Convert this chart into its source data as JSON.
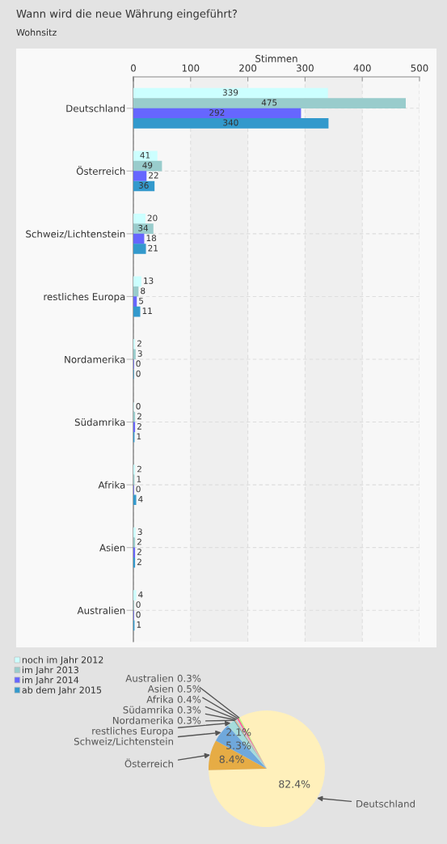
{
  "chart_data": [
    {
      "type": "bar",
      "orientation": "horizontal",
      "title": "Wann wird die neue Währung eingeführt?",
      "subtitle": "Wohnsitz",
      "xlabel": "Stimmen",
      "categories": [
        "Deutschland",
        "Österreich",
        "Schweiz/Lichtenstein",
        "restliches Europa",
        "Nordamerika",
        "Südamrika",
        "Afrika",
        "Asien",
        "Australien"
      ],
      "series": [
        {
          "name": "noch im Jahr 2012",
          "color": "#ccffff",
          "values": [
            339,
            41,
            20,
            13,
            2,
            0,
            2,
            3,
            4
          ]
        },
        {
          "name": "im Jahr 2013",
          "color": "#99cccc",
          "values": [
            475,
            49,
            34,
            8,
            3,
            2,
            1,
            2,
            0
          ]
        },
        {
          "name": "im Jahr 2014",
          "color": "#6666ff",
          "values": [
            292,
            22,
            18,
            5,
            0,
            2,
            0,
            2,
            0
          ]
        },
        {
          "name": "ab dem Jahr 2015",
          "color": "#3399cc",
          "values": [
            340,
            36,
            21,
            11,
            0,
            1,
            4,
            2,
            1
          ]
        }
      ],
      "xlim": [
        0,
        500
      ],
      "xticks": [
        0,
        100,
        200,
        300,
        400,
        500
      ],
      "bands": [
        {
          "axis": "x",
          "from": 100,
          "to": 200,
          "color": "#efefef"
        },
        {
          "axis": "x",
          "from": 300,
          "to": 400,
          "color": "#efefef"
        }
      ],
      "grid": true,
      "data_labels": true,
      "legend": "bottom left"
    },
    {
      "type": "pie",
      "categories": [
        "Deutschland",
        "Österreich",
        "Schweiz/Lichtenstein",
        "restliches Europa",
        "Nordamerika",
        "Südamrika",
        "Afrika",
        "Asien",
        "Australien"
      ],
      "values": [
        82.4,
        8.4,
        5.3,
        2.1,
        0.3,
        0.3,
        0.4,
        0.5,
        0.3
      ],
      "colors": [
        "#fff0bb",
        "#e6ac45",
        "#6fa8dc",
        "#a6dcdc",
        "#6fa3a3",
        "#f2aa8a",
        "#b5dede",
        "#ff6699",
        "#b3ff73"
      ],
      "value_labels": [
        "82.4%",
        "8.4%",
        "5.3%",
        "2.1%",
        "0.3%",
        "0.3%",
        "0.4%",
        "0.5%",
        "0.3%"
      ]
    }
  ]
}
